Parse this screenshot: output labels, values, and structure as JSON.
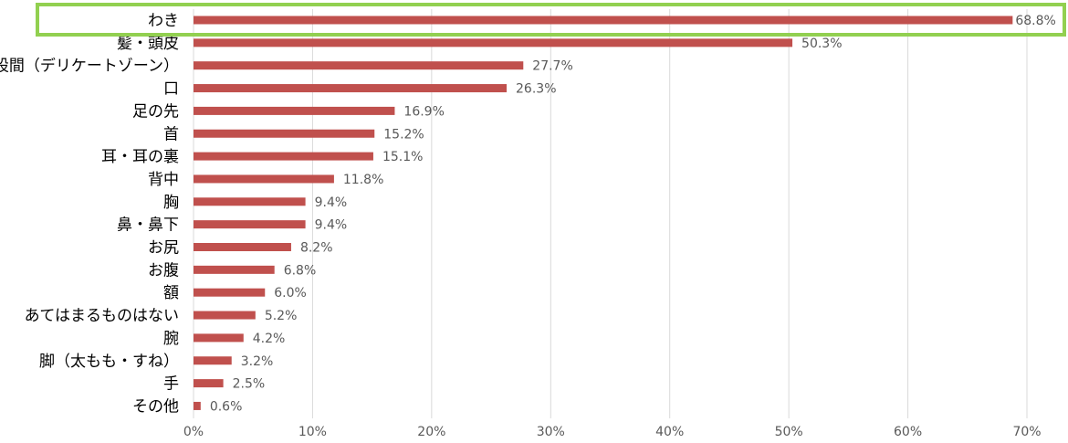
{
  "chart_data": {
    "type": "bar",
    "orientation": "horizontal",
    "categories": [
      "わき",
      "髪・頭皮",
      "股間（デリケートゾーン）",
      "口",
      "足の先",
      "首",
      "耳・耳の裏",
      "背中",
      "胸",
      "鼻・鼻下",
      "お尻",
      "お腹",
      "額",
      "あてはまるものはない",
      "腕",
      "脚（太もも・すね）",
      "手",
      "その他"
    ],
    "values": [
      68.8,
      50.3,
      27.7,
      26.3,
      16.9,
      15.2,
      15.1,
      11.8,
      9.4,
      9.4,
      8.2,
      6.8,
      6.0,
      5.2,
      4.2,
      3.2,
      2.5,
      0.6
    ],
    "value_labels": [
      "68.8%",
      "50.3%",
      "27.7%",
      "26.3%",
      "16.9%",
      "15.2%",
      "15.1%",
      "11.8%",
      "9.4%",
      "9.4%",
      "8.2%",
      "6.8%",
      "6.0%",
      "5.2%",
      "4.2%",
      "3.2%",
      "2.5%",
      "0.6%"
    ],
    "x_ticks": [
      0,
      10,
      20,
      30,
      40,
      50,
      60,
      70
    ],
    "x_tick_labels": [
      "0%",
      "10%",
      "20%",
      "30%",
      "40%",
      "50%",
      "60%",
      "70%"
    ],
    "xlim": [
      0,
      70
    ],
    "title": "",
    "xlabel": "",
    "ylabel": "",
    "grid": "vertical",
    "legend": "none",
    "highlighted_category": "わき"
  },
  "colors": {
    "bar": "#c0504d",
    "grid": "#d9d9d9",
    "highlight_border": "#92d050"
  }
}
